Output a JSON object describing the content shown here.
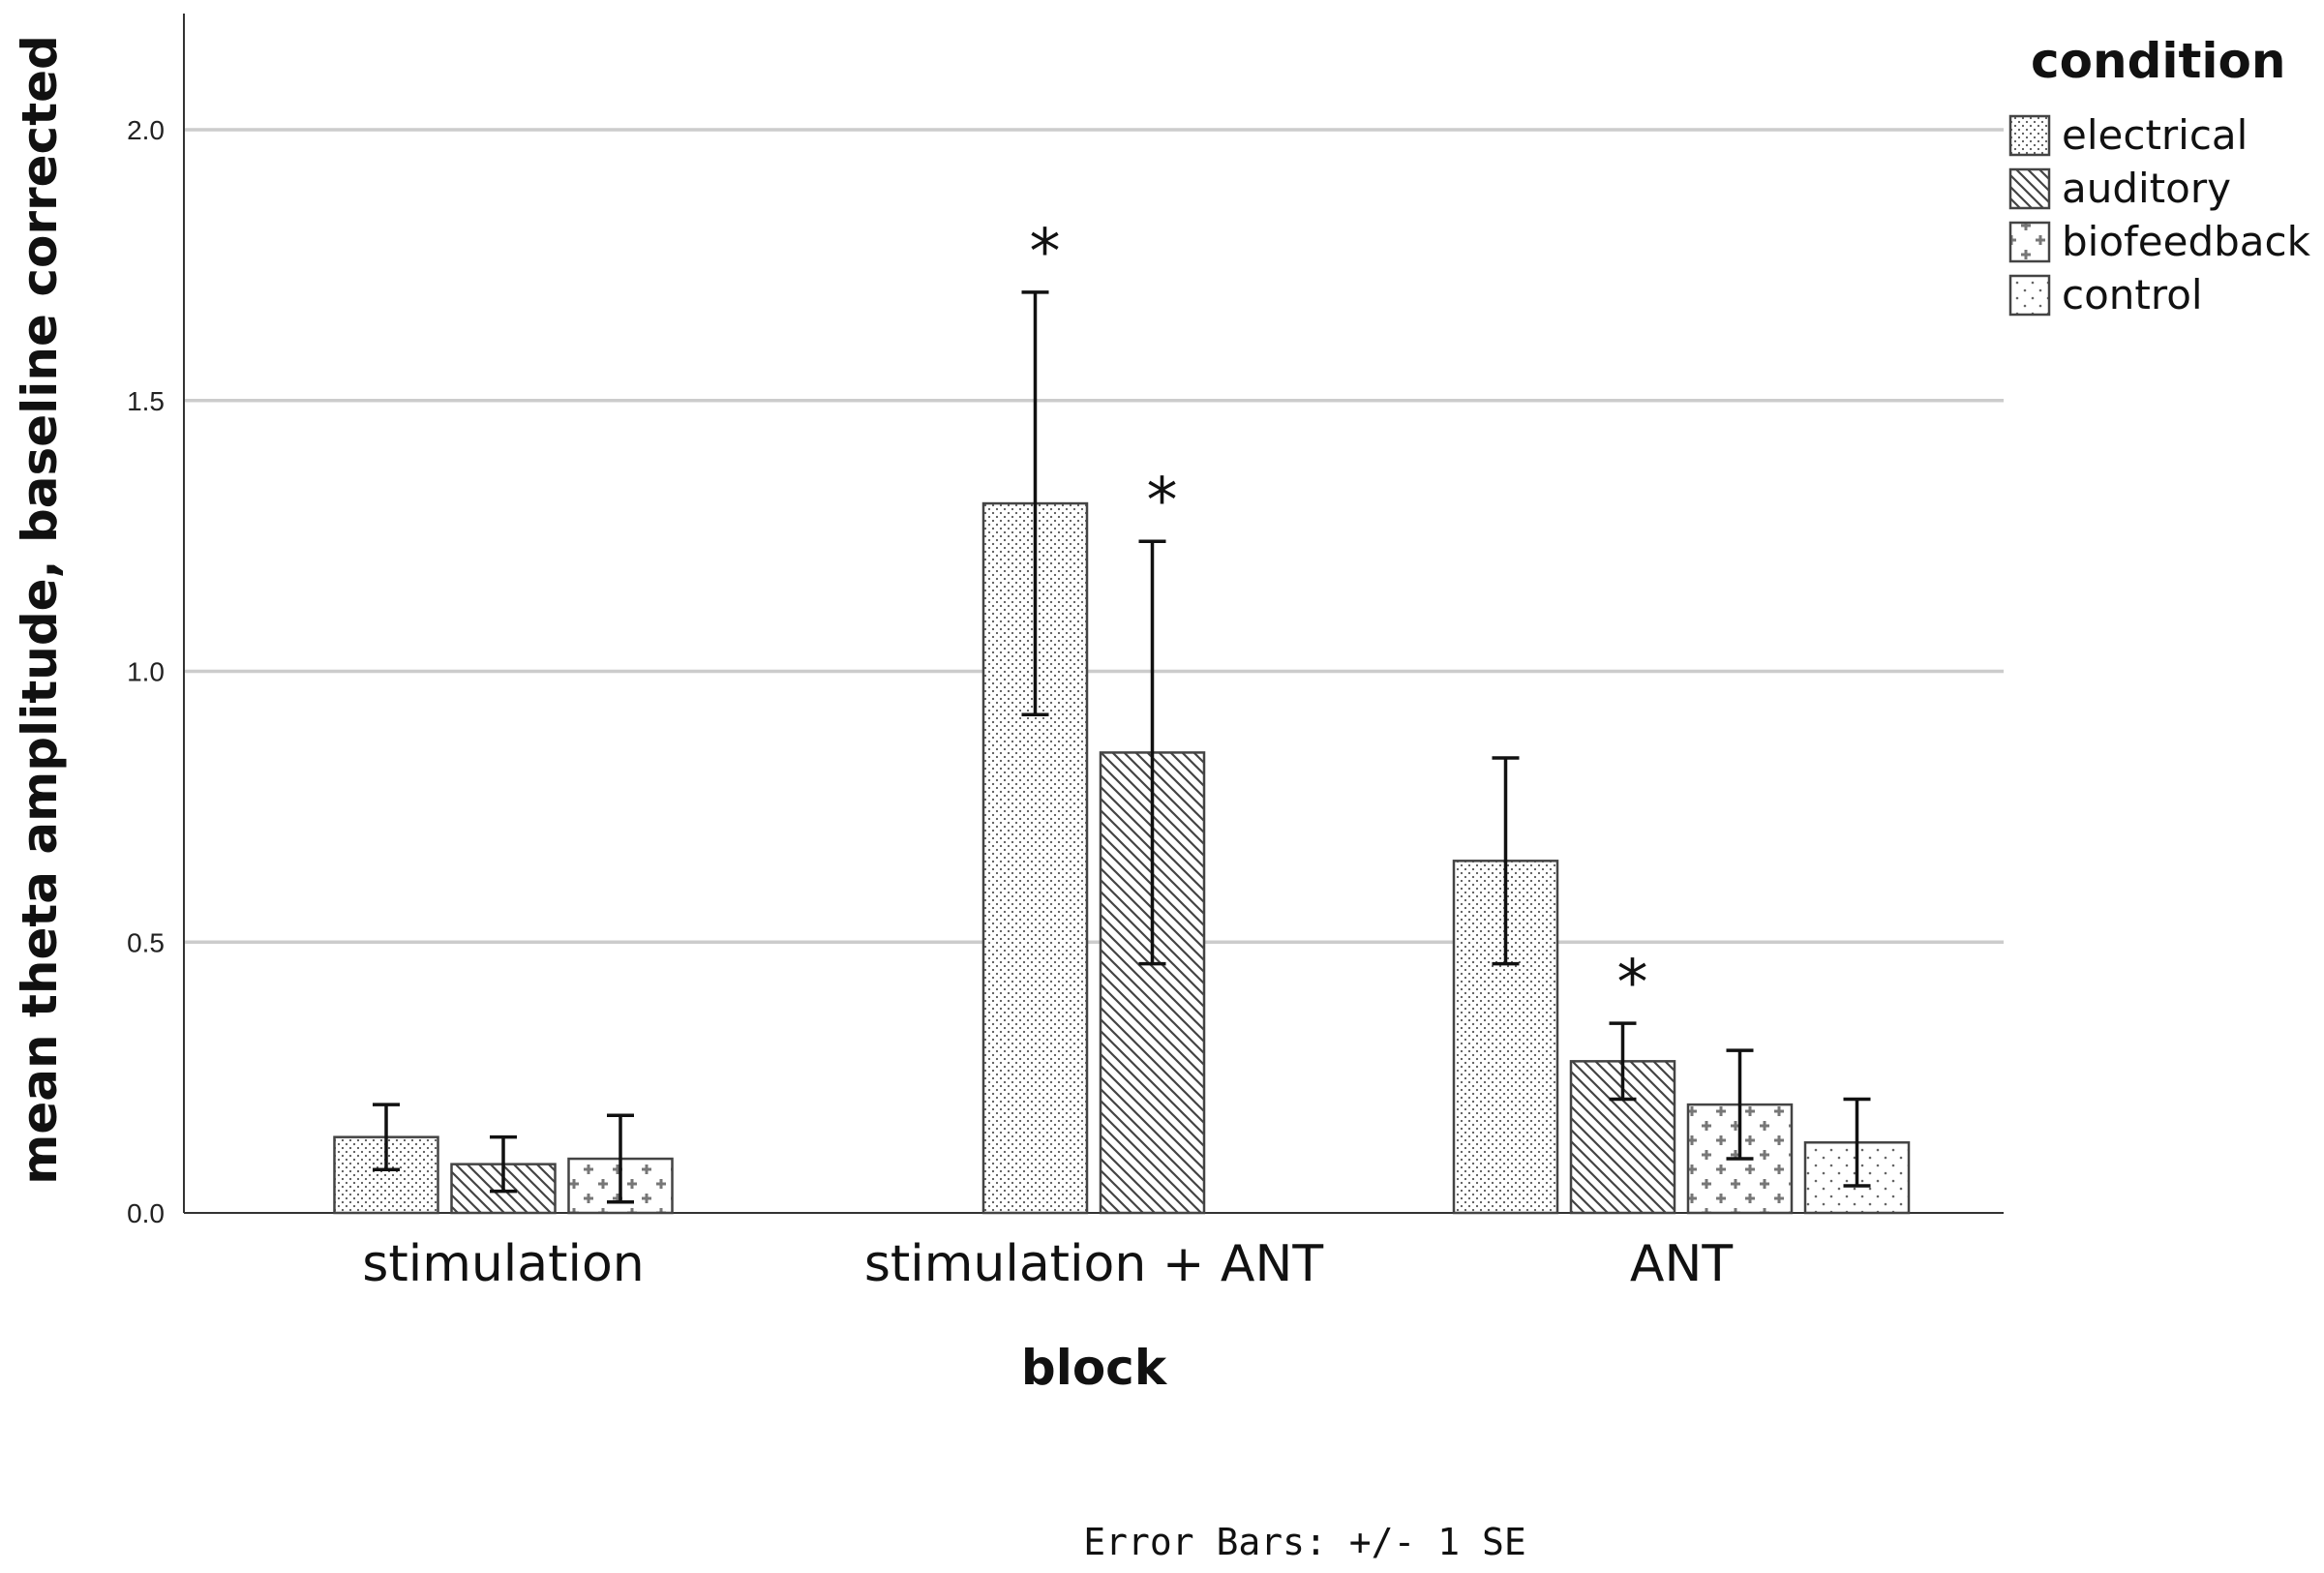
{
  "chart_data": {
    "type": "bar",
    "xlabel": "block",
    "ylabel": "mean theta amplitude, baseline corrected",
    "ylim": [
      0,
      2.2
    ],
    "yticks": [
      0.0,
      0.5,
      1.0,
      1.5,
      2.0
    ],
    "ytick_labels": [
      "0.0",
      "0.5",
      "1.0",
      "1.5",
      "2.0"
    ],
    "grid": "horizontal",
    "legend_title": "condition",
    "legend_position": "top-right",
    "categories": [
      "stimulation",
      "stimulation + ANT",
      "ANT"
    ],
    "series": [
      {
        "name": "electrical",
        "pattern": "fine-dots",
        "values": [
          0.14,
          1.31,
          0.65
        ],
        "error": [
          0.06,
          0.39,
          0.19
        ]
      },
      {
        "name": "auditory",
        "pattern": "diagonal-hatch",
        "values": [
          0.09,
          0.85,
          0.28
        ],
        "error": [
          0.05,
          0.39,
          0.07
        ]
      },
      {
        "name": "biofeedback",
        "pattern": "plus-marks",
        "values": [
          0.1,
          null,
          0.2
        ],
        "error": [
          0.08,
          null,
          0.1
        ]
      },
      {
        "name": "control",
        "pattern": "sparse-dots",
        "values": [
          null,
          null,
          0.13
        ],
        "error": [
          null,
          null,
          0.08
        ]
      }
    ],
    "annotations": [
      {
        "text": "*",
        "category": "stimulation + ANT",
        "series": "electrical"
      },
      {
        "text": "*",
        "category": "stimulation + ANT",
        "series": "auditory"
      },
      {
        "text": "*",
        "category": "ANT",
        "series": "auditory"
      }
    ],
    "footnote": "Error Bars: +/- 1 SE",
    "colors": {
      "bar_fill": "#ffffff",
      "bar_edge": "#444444",
      "pattern": "#555555",
      "gridline": "#cccccc",
      "axis": "#333333"
    }
  }
}
